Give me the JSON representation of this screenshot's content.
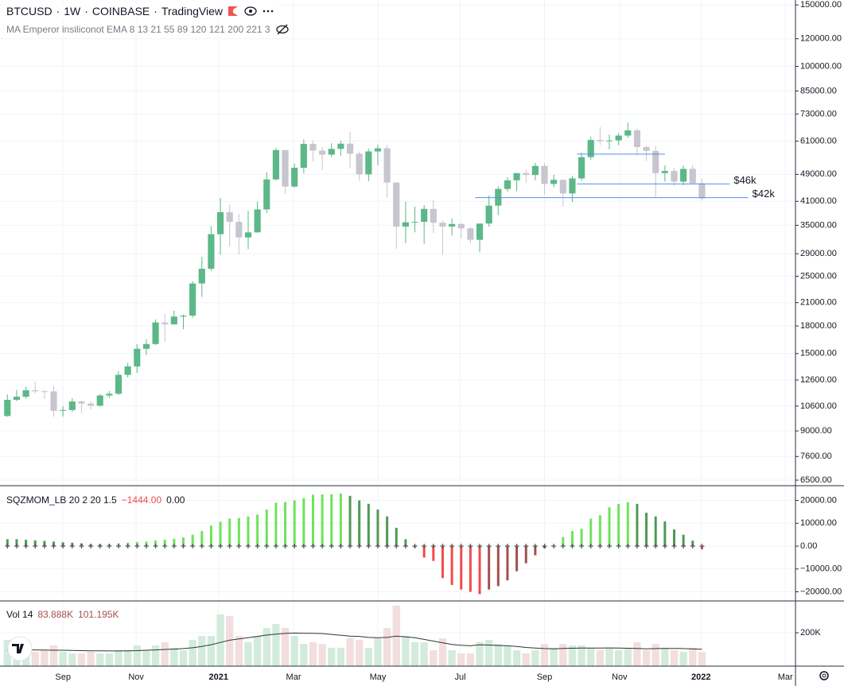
{
  "chart_data": [
    {
      "type": "candlestick",
      "symbol": "BTCUSD",
      "interval": "1W",
      "exchange": "COINBASE",
      "source": "TradingView",
      "indicator": "MA Emperor insiliconot EMA 8 13 21 55 89 120 121 200 221 3",
      "open": [
        9930,
        11050,
        11280,
        11770,
        11690,
        11680,
        10280,
        10330,
        10930,
        10780,
        10630,
        11370,
        11500,
        13030,
        13780,
        15480,
        15970,
        18420,
        18190,
        19150,
        19270,
        23830,
        26260,
        33000,
        38170,
        35800,
        32300,
        33400,
        38860,
        47400,
        57520,
        45200,
        51180,
        59900,
        57340,
        55800,
        57960,
        60000,
        56150,
        49000,
        57000,
        58200,
        46400,
        34700,
        35700,
        35800,
        39000,
        35600,
        34700,
        35300,
        34300,
        31800,
        35400,
        39850,
        44500,
        47100,
        49400,
        48800,
        51800,
        46000,
        47250,
        43200,
        47700,
        54900,
        61500,
        61000,
        61300,
        63300,
        65500,
        58700,
        57200,
        49400,
        50100,
        46700,
        50800,
        46200
      ],
      "high": [
        11450,
        11800,
        12050,
        12460,
        11800,
        12090,
        10600,
        11180,
        10990,
        10950,
        11480,
        11720,
        13350,
        14100,
        15960,
        16480,
        18800,
        19500,
        19900,
        19400,
        24200,
        28400,
        34800,
        41950,
        40100,
        37800,
        38500,
        40950,
        49700,
        58350,
        57600,
        52600,
        61700,
        61400,
        58700,
        60200,
        61200,
        64900,
        57000,
        58000,
        59600,
        59600,
        46600,
        40900,
        39600,
        40000,
        41300,
        36100,
        36600,
        35500,
        34600,
        35300,
        42600,
        45300,
        48100,
        49400,
        50500,
        52900,
        52800,
        48900,
        47400,
        48500,
        56600,
        62900,
        67000,
        63700,
        64300,
        69000,
        66300,
        59300,
        59100,
        51950,
        51100,
        51900,
        52100,
        47600
      ],
      "low": [
        9880,
        10950,
        11130,
        11520,
        11140,
        9880,
        9900,
        10210,
        10140,
        10370,
        10560,
        11190,
        11420,
        12800,
        13200,
        14850,
        15860,
        16200,
        18180,
        17620,
        19000,
        21800,
        25900,
        28800,
        30400,
        28850,
        29900,
        33350,
        37990,
        47000,
        43000,
        44950,
        49350,
        53300,
        50400,
        54900,
        55400,
        51000,
        47000,
        46900,
        52000,
        42000,
        30000,
        31100,
        33400,
        31000,
        33300,
        28800,
        32700,
        32100,
        31050,
        29300,
        34700,
        37400,
        43700,
        43900,
        46400,
        47100,
        42800,
        45000,
        39600,
        40800,
        47000,
        53900,
        59500,
        57800,
        59400,
        62300,
        55600,
        53500,
        42000,
        46700,
        45500,
        45600,
        45700,
        41200
      ],
      "close": [
        11050,
        11280,
        11770,
        11690,
        11680,
        10280,
        10330,
        10930,
        10780,
        10630,
        11370,
        11500,
        13030,
        13780,
        15480,
        15970,
        18420,
        18190,
        19150,
        19270,
        23830,
        26260,
        33000,
        38170,
        35800,
        32300,
        33400,
        38860,
        47400,
        57520,
        45200,
        51180,
        59900,
        57340,
        55800,
        57960,
        60000,
        56150,
        49000,
        57000,
        58200,
        46400,
        34700,
        35700,
        35800,
        39000,
        35600,
        34700,
        35300,
        34300,
        31800,
        35400,
        39850,
        44500,
        47100,
        49400,
        48800,
        51800,
        46000,
        47250,
        43200,
        47700,
        54900,
        61500,
        61000,
        61300,
        63300,
        65500,
        58700,
        57200,
        49400,
        50100,
        46700,
        50800,
        46200,
        41800
      ],
      "up_color": "#5bb888",
      "down_color": "#c7c5cd",
      "log_scale": true,
      "grid": true,
      "xlim": [
        -0.8,
        85.1
      ],
      "ylim": [
        6300,
        155000
      ],
      "yticks": [
        {
          "value": 150000,
          "label": "150000.00"
        },
        {
          "value": 120000,
          "label": "120000.00"
        },
        {
          "value": 100000,
          "label": "100000.00"
        },
        {
          "value": 85000,
          "label": "85000.00"
        },
        {
          "value": 73000,
          "label": "73000.00"
        },
        {
          "value": 61000,
          "label": "61000.00"
        },
        {
          "value": 49000,
          "label": "49000.00"
        },
        {
          "value": 41000,
          "label": "41000.00"
        },
        {
          "value": 35000,
          "label": "35000.00"
        },
        {
          "value": 29000,
          "label": "29000.00"
        },
        {
          "value": 25000,
          "label": "25000.00"
        },
        {
          "value": 21000,
          "label": "21000.00"
        },
        {
          "value": 18000,
          "label": "18000.00"
        },
        {
          "value": 15000,
          "label": "15000.00"
        },
        {
          "value": 12600,
          "label": "12600.00"
        },
        {
          "value": 10600,
          "label": "10600.00"
        },
        {
          "value": 9000,
          "label": "9000.00"
        },
        {
          "value": 7600,
          "label": "7600.00"
        },
        {
          "value": 6500,
          "label": "6500.00"
        }
      ],
      "annotations": [
        {
          "value": 46000,
          "label": "$46k"
        },
        {
          "value": 42000,
          "label": "$42k"
        },
        {
          "value": 56000
        }
      ],
      "annotation_color": "#5b8def",
      "annotation_label_color": "#2f8ee5"
    },
    {
      "type": "histogram",
      "title": "SQZMOM_LB 20 2 20 1.5",
      "status_values": [
        {
          "value": -1444,
          "label": "−1444.00"
        },
        {
          "value": 0,
          "label": "0.00"
        }
      ],
      "values": [
        3000,
        3000,
        2800,
        2500,
        2300,
        2000,
        1700,
        1500,
        1200,
        800,
        800,
        900,
        1200,
        1500,
        1800,
        2000,
        2500,
        2800,
        3200,
        3800,
        5000,
        6600,
        9000,
        10700,
        12000,
        12300,
        13000,
        13800,
        16000,
        19000,
        19300,
        20000,
        21000,
        22500,
        22600,
        22700,
        23000,
        22000,
        20000,
        18500,
        16000,
        13000,
        8000,
        3000,
        -500,
        -5000,
        -6500,
        -14000,
        -17000,
        -19000,
        -20000,
        -21000,
        -19000,
        -17500,
        -15000,
        -11000,
        -7500,
        -4000,
        -1000,
        300,
        4000,
        6600,
        7600,
        12000,
        13500,
        17000,
        18500,
        19200,
        18500,
        14600,
        13000,
        10800,
        7300,
        5000,
        2400,
        -1444
      ],
      "colors": {
        "rising_positive": "#6ee35b",
        "falling_positive": "#4f9a53",
        "falling_negative": "#f24b4b",
        "rising_negative": "#a3504f"
      },
      "xlim": [
        -0.8,
        85.1
      ],
      "ylim": [
        -23650,
        26100
      ],
      "yticks": [
        {
          "value": 20000,
          "label": "20000.00"
        },
        {
          "value": 10000,
          "label": "10000.00"
        },
        {
          "value": 0,
          "label": "0.00"
        },
        {
          "value": -10000,
          "label": "−10000.00"
        },
        {
          "value": -20000,
          "label": "−20000.00"
        }
      ],
      "grid": true
    },
    {
      "type": "volume",
      "title": "Vol 14",
      "status_values": [
        {
          "value": 83888,
          "label": "83.888K"
        },
        {
          "value": 101195,
          "label": "101.195K"
        }
      ],
      "values": [
        157000,
        110000,
        110000,
        86000,
        95000,
        124000,
        86000,
        76000,
        76000,
        86000,
        76000,
        76000,
        95000,
        95000,
        124000,
        95000,
        124000,
        143000,
        110000,
        95000,
        157000,
        181000,
        181000,
        310000,
        300000,
        181000,
        143000,
        181000,
        229000,
        252000,
        229000,
        181000,
        133000,
        143000,
        133000,
        110000,
        110000,
        167000,
        157000,
        110000,
        167000,
        229000,
        362000,
        181000,
        143000,
        143000,
        95000,
        167000,
        95000,
        76000,
        76000,
        143000,
        157000,
        133000,
        124000,
        95000,
        76000,
        95000,
        133000,
        110000,
        133000,
        124000,
        124000,
        110000,
        95000,
        110000,
        95000,
        110000,
        143000,
        95000,
        133000,
        110000,
        95000,
        86000,
        110000,
        83888
      ],
      "ma": [
        95000,
        96000,
        97000,
        97000,
        96000,
        95000,
        95000,
        94000,
        93000,
        92000,
        92000,
        91000,
        91000,
        92000,
        93000,
        95000,
        97000,
        100000,
        102000,
        105000,
        110000,
        118000,
        128000,
        142000,
        155000,
        163000,
        170000,
        178000,
        186000,
        192000,
        196000,
        198000,
        197000,
        196000,
        195000,
        190000,
        185000,
        180000,
        178000,
        172000,
        170000,
        172000,
        180000,
        175000,
        170000,
        160000,
        150000,
        140000,
        130000,
        125000,
        122000,
        128000,
        126000,
        124000,
        122000,
        118000,
        112000,
        108000,
        105000,
        104000,
        106000,
        107000,
        108000,
        108000,
        108000,
        109000,
        108000,
        107000,
        106000,
        104000,
        105000,
        106000,
        106000,
        105000,
        103000,
        101195
      ],
      "up_color": "#d3ebdc",
      "down_color": "#f2dede",
      "ma_color": "#333333",
      "xlim": [
        -0.8,
        85.1
      ],
      "ylim": [
        0,
        385700
      ],
      "yticks": [
        {
          "value": 200000,
          "label": "200K"
        }
      ],
      "xticks": [
        {
          "value": 6.0,
          "label": "Sep"
        },
        {
          "value": 13.9,
          "label": "Nov"
        },
        {
          "value": 22.8,
          "label": "2021"
        },
        {
          "value": 30.9,
          "label": "Mar"
        },
        {
          "value": 40.0,
          "label": "May"
        },
        {
          "value": 48.9,
          "label": "Jul"
        },
        {
          "value": 58.0,
          "label": "Sep"
        },
        {
          "value": 66.1,
          "label": "Nov"
        },
        {
          "value": 74.9,
          "label": "2022"
        },
        {
          "value": 84.0,
          "label": "Mar"
        }
      ],
      "grid": true
    }
  ]
}
